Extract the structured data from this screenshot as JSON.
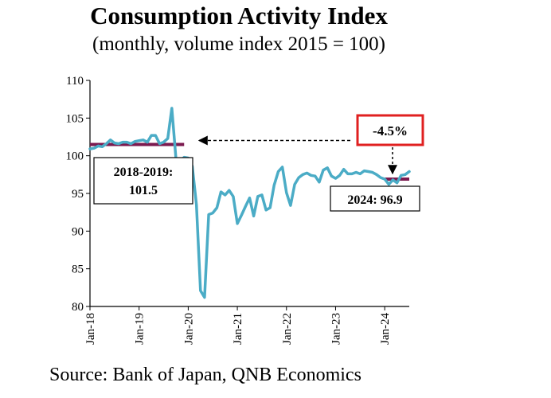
{
  "chart_data": {
    "type": "line",
    "title": "Consumption Activity Index",
    "subtitle": "(monthly, volume index 2015 = 100)",
    "source": "Source: Bank of Japan, QNB Economics",
    "ylim": [
      80,
      110
    ],
    "y_ticks": [
      "80",
      "85",
      "90",
      "95",
      "100",
      "105",
      "110"
    ],
    "x_range": [
      "2018-01",
      "2024-07"
    ],
    "x_ticks": [
      {
        "label": "Jan-18",
        "date": "2018-01"
      },
      {
        "label": "Jan-19",
        "date": "2019-01"
      },
      {
        "label": "Jan-20",
        "date": "2020-01"
      },
      {
        "label": "Jan-21",
        "date": "2021-01"
      },
      {
        "label": "Jan-22",
        "date": "2022-01"
      },
      {
        "label": "Jan-23",
        "date": "2023-01"
      },
      {
        "label": "Jan-24",
        "date": "2024-01"
      }
    ],
    "grid": false,
    "series": [
      {
        "color": "#4bacc6",
        "x": [
          "2018-01",
          "2018-02",
          "2018-03",
          "2018-04",
          "2018-05",
          "2018-06",
          "2018-07",
          "2018-08",
          "2018-09",
          "2018-10",
          "2018-11",
          "2018-12",
          "2019-01",
          "2019-02",
          "2019-03",
          "2019-04",
          "2019-05",
          "2019-06",
          "2019-07",
          "2019-08",
          "2019-09",
          "2019-10",
          "2019-11",
          "2019-12",
          "2020-01",
          "2020-02",
          "2020-03",
          "2020-04",
          "2020-05",
          "2020-06",
          "2020-07",
          "2020-08",
          "2020-09",
          "2020-10",
          "2020-11",
          "2020-12",
          "2021-01",
          "2021-02",
          "2021-03",
          "2021-04",
          "2021-05",
          "2021-06",
          "2021-07",
          "2021-08",
          "2021-09",
          "2021-10",
          "2021-11",
          "2021-12",
          "2022-01",
          "2022-02",
          "2022-03",
          "2022-04",
          "2022-05",
          "2022-06",
          "2022-07",
          "2022-08",
          "2022-09",
          "2022-10",
          "2022-11",
          "2022-12",
          "2023-01",
          "2023-02",
          "2023-03",
          "2023-04",
          "2023-05",
          "2023-06",
          "2023-07",
          "2023-08",
          "2023-09",
          "2023-10",
          "2023-11",
          "2023-12",
          "2024-01",
          "2024-02",
          "2024-03",
          "2024-04",
          "2024-05",
          "2024-06",
          "2024-07"
        ],
        "y": [
          100.9,
          101.0,
          101.3,
          101.2,
          101.6,
          102.1,
          101.7,
          101.6,
          101.8,
          101.8,
          101.6,
          101.9,
          102.0,
          102.1,
          101.8,
          102.7,
          102.7,
          101.6,
          101.8,
          102.3,
          106.3,
          99.6,
          99.3,
          99.8,
          99.7,
          98.6,
          93.5,
          82.1,
          81.2,
          92.2,
          92.4,
          93.1,
          95.2,
          94.8,
          95.4,
          94.6,
          91.0,
          92.1,
          93.3,
          94.4,
          92.0,
          94.6,
          94.8,
          92.8,
          93.1,
          96.1,
          97.9,
          98.5,
          95.1,
          93.4,
          96.2,
          97.1,
          97.5,
          97.7,
          97.4,
          97.3,
          96.5,
          98.1,
          98.4,
          97.3,
          97.0,
          97.4,
          98.2,
          97.6,
          97.6,
          97.8,
          97.6,
          98.0,
          97.9,
          97.8,
          97.5,
          97.1,
          96.9,
          96.2,
          96.8,
          96.4,
          97.4,
          97.5,
          97.9
        ]
      }
    ],
    "reference_lines": [
      {
        "label": "2018-2019:",
        "value": 101.5,
        "value_text": "101.5",
        "x_start": "2018-01",
        "x_end": "2019-12",
        "color": "#7b1a4f"
      },
      {
        "label": "2024: 96.9",
        "value": 96.9,
        "x_start": "2024-01",
        "x_end": "2024-07",
        "color": "#7b1a4f"
      }
    ],
    "annotation": {
      "text": "-4.5%",
      "border_color": "#e02020"
    }
  }
}
